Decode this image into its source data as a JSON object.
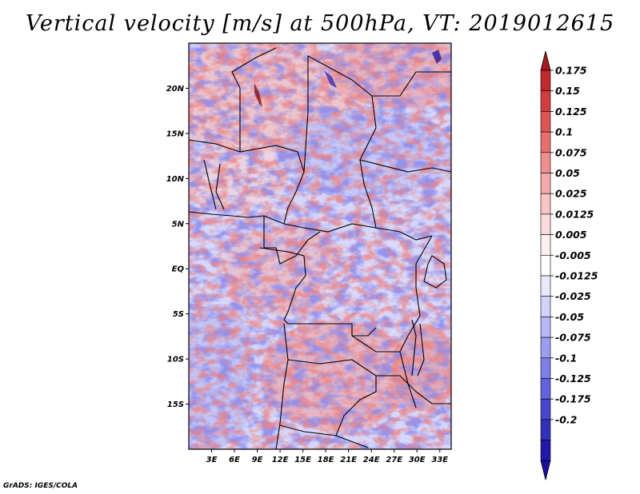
{
  "title": "Vertical velocity [m/s] at 500hPa, VT: 2019012615",
  "credit": "GrADS: IGES/COLA",
  "map": {
    "lon_range": [
      0,
      34.5
    ],
    "lat_range": [
      -20,
      25
    ],
    "lat_ticks": [
      {
        "value": 20,
        "label": "20N"
      },
      {
        "value": 15,
        "label": "15N"
      },
      {
        "value": 10,
        "label": "10N"
      },
      {
        "value": 5,
        "label": "5N"
      },
      {
        "value": 0,
        "label": "EQ"
      },
      {
        "value": -5,
        "label": "5S"
      },
      {
        "value": -10,
        "label": "10S"
      },
      {
        "value": -15,
        "label": "15S"
      }
    ],
    "lon_ticks": [
      {
        "value": 3,
        "label": "3E"
      },
      {
        "value": 6,
        "label": "6E"
      },
      {
        "value": 9,
        "label": "9E"
      },
      {
        "value": 12,
        "label": "12E"
      },
      {
        "value": 15,
        "label": "15E"
      },
      {
        "value": 18,
        "label": "18E"
      },
      {
        "value": 21,
        "label": "21E"
      },
      {
        "value": 24,
        "label": "24E"
      },
      {
        "value": 27,
        "label": "27E"
      },
      {
        "value": 30,
        "label": "30E"
      },
      {
        "value": 33,
        "label": "33E"
      }
    ]
  },
  "colorbar": {
    "top_color": "#a81820",
    "bottom_color": "#1a0ea0",
    "bins": [
      {
        "label": "0.175",
        "color": "#c02a2a"
      },
      {
        "label": "0.15",
        "color": "#d23e3e"
      },
      {
        "label": "0.125",
        "color": "#dd5656"
      },
      {
        "label": "0.1",
        "color": "#e67070"
      },
      {
        "label": "0.075",
        "color": "#ee8e8e"
      },
      {
        "label": "0.05",
        "color": "#f4aaaa"
      },
      {
        "label": "0.025",
        "color": "#f8c4c4"
      },
      {
        "label": "0.0125",
        "color": "#fbdcdc"
      },
      {
        "label": "0.005",
        "color": "#fdf0f0"
      },
      {
        "label": "-0.005",
        "color": "#ffffff"
      },
      {
        "label": "-0.0125",
        "color": "#eaeaff"
      },
      {
        "label": "-0.025",
        "color": "#d2d2fb"
      },
      {
        "label": "-0.05",
        "color": "#b8b8f6"
      },
      {
        "label": "-0.075",
        "color": "#9c9cf0"
      },
      {
        "label": "-0.1",
        "color": "#7f7fe8"
      },
      {
        "label": "-0.125",
        "color": "#6262dc"
      },
      {
        "label": "-0.175",
        "color": "#4646cc"
      },
      {
        "label": "-0.2",
        "color": "#3030b8"
      }
    ],
    "extra_bins": [
      "#2218a8"
    ]
  }
}
